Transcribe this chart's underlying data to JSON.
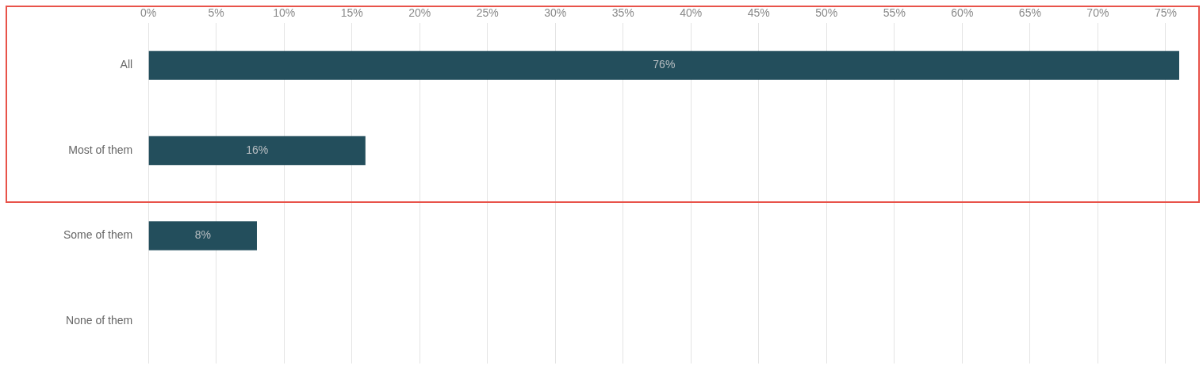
{
  "chart_data": {
    "type": "bar",
    "orientation": "horizontal",
    "categories": [
      "All",
      "Most of them",
      "Some of them",
      "None of them"
    ],
    "values": [
      76,
      16,
      8,
      0
    ],
    "color": "#234e5c",
    "value_labels": [
      "76%",
      "16%",
      "8%",
      null
    ],
    "xlim": [
      0,
      76
    ],
    "xticks": [
      {
        "value": 0,
        "label": "0%"
      },
      {
        "value": 5,
        "label": "5%"
      },
      {
        "value": 10,
        "label": "10%"
      },
      {
        "value": 15,
        "label": "15%"
      },
      {
        "value": 20,
        "label": "20%"
      },
      {
        "value": 25,
        "label": "25%"
      },
      {
        "value": 30,
        "label": "30%"
      },
      {
        "value": 35,
        "label": "35%"
      },
      {
        "value": 40,
        "label": "40%"
      },
      {
        "value": 45,
        "label": "45%"
      },
      {
        "value": 50,
        "label": "50%"
      },
      {
        "value": 55,
        "label": "55%"
      },
      {
        "value": 60,
        "label": "60%"
      },
      {
        "value": 65,
        "label": "65%"
      },
      {
        "value": 70,
        "label": "70%"
      },
      {
        "value": 75,
        "label": "75%"
      }
    ],
    "grid": "x",
    "legend": false
  }
}
